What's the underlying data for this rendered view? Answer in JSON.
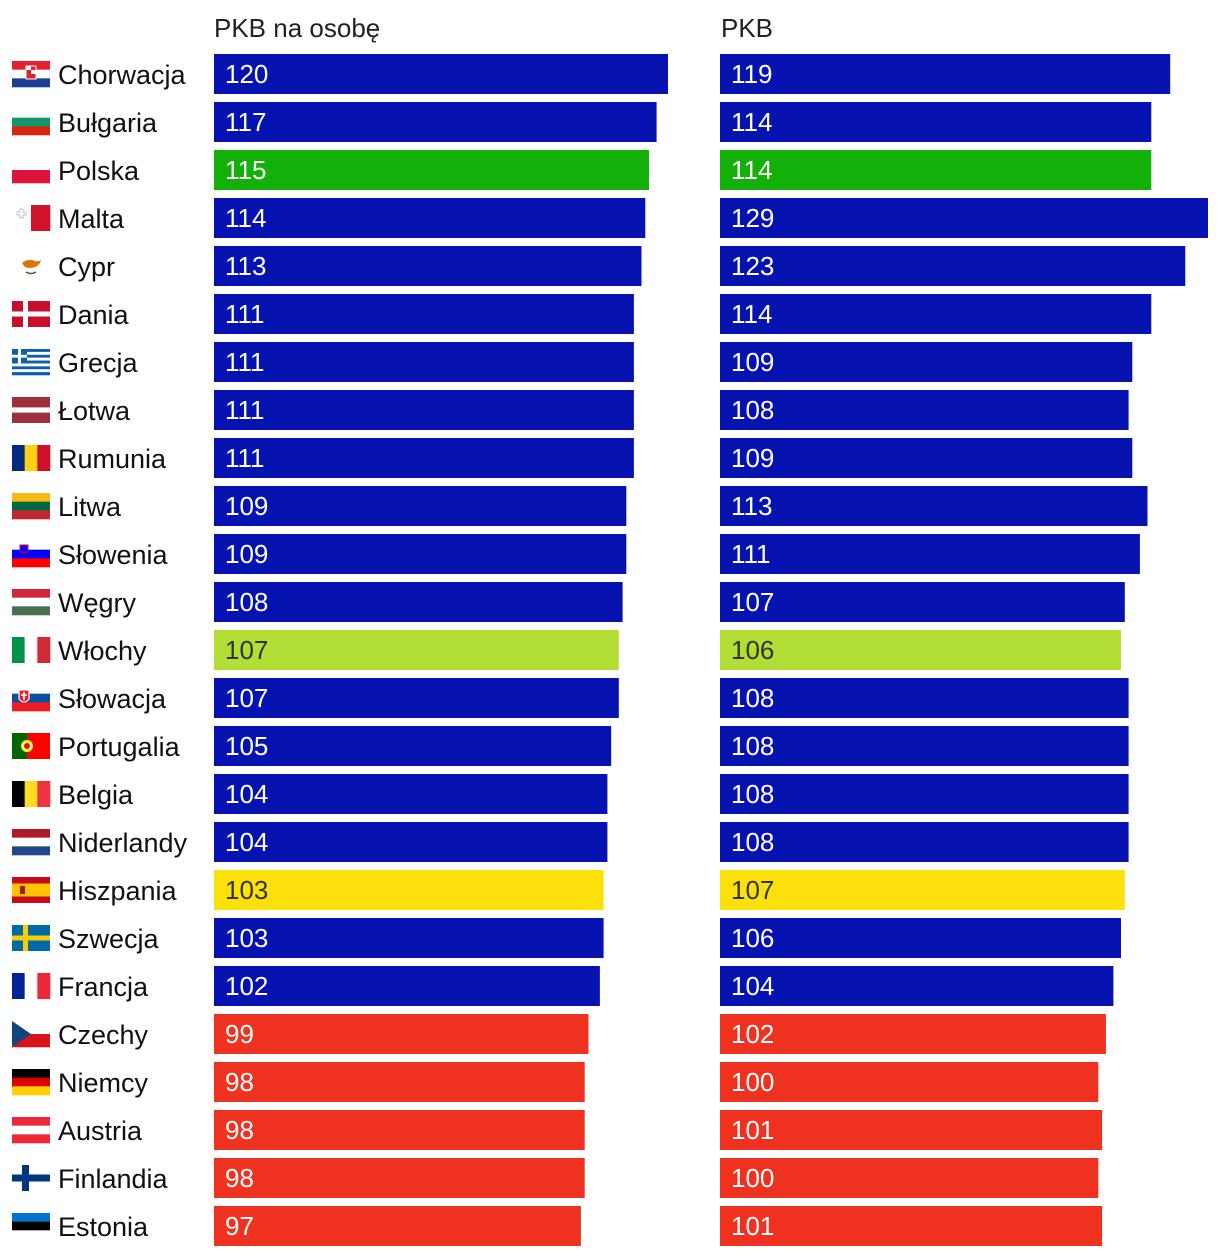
{
  "chart_data": {
    "type": "bar",
    "orientation": "horizontal",
    "colors": {
      "default": "#0613b0",
      "highlight_pl": "#14b00a",
      "highlight_it": "#b3de36",
      "highlight_es": "#fbe00c",
      "below_100": "#ef3220",
      "text_light": "#ffffff",
      "text_dark": "#333333"
    },
    "series": [
      {
        "name": "PKB na osobę",
        "xlim": [
          0,
          129
        ]
      },
      {
        "name": "PKB",
        "xlim": [
          0,
          129
        ]
      }
    ],
    "rows": [
      {
        "country": "Chorwacja",
        "flag": "croatia-flag",
        "color": "default",
        "values": [
          120,
          119
        ]
      },
      {
        "country": "Bułgaria",
        "flag": "bulgaria-flag",
        "color": "default",
        "values": [
          117,
          114
        ]
      },
      {
        "country": "Polska",
        "flag": "poland-flag",
        "color": "highlight_pl",
        "values": [
          115,
          114
        ]
      },
      {
        "country": "Malta",
        "flag": "malta-flag",
        "color": "default",
        "values": [
          114,
          129
        ]
      },
      {
        "country": "Cypr",
        "flag": "cyprus-flag",
        "color": "default",
        "values": [
          113,
          123
        ]
      },
      {
        "country": "Dania",
        "flag": "denmark-flag",
        "color": "default",
        "values": [
          111,
          114
        ]
      },
      {
        "country": "Grecja",
        "flag": "greece-flag",
        "color": "default",
        "values": [
          111,
          109
        ]
      },
      {
        "country": "Łotwa",
        "flag": "latvia-flag",
        "color": "default",
        "values": [
          111,
          108
        ]
      },
      {
        "country": "Rumunia",
        "flag": "romania-flag",
        "color": "default",
        "values": [
          111,
          109
        ]
      },
      {
        "country": "Litwa",
        "flag": "lithuania-flag",
        "color": "default",
        "values": [
          109,
          113
        ]
      },
      {
        "country": "Słowenia",
        "flag": "slovenia-flag",
        "color": "default",
        "values": [
          109,
          111
        ]
      },
      {
        "country": "Węgry",
        "flag": "hungary-flag",
        "color": "default",
        "values": [
          108,
          107
        ]
      },
      {
        "country": "Włochy",
        "flag": "italy-flag",
        "color": "highlight_it",
        "values": [
          107,
          106
        ]
      },
      {
        "country": "Słowacja",
        "flag": "slovakia-flag",
        "color": "default",
        "values": [
          107,
          108
        ]
      },
      {
        "country": "Portugalia",
        "flag": "portugal-flag",
        "color": "default",
        "values": [
          105,
          108
        ]
      },
      {
        "country": "Belgia",
        "flag": "belgium-flag",
        "color": "default",
        "values": [
          104,
          108
        ]
      },
      {
        "country": "Niderlandy",
        "flag": "netherlands-flag",
        "color": "default",
        "values": [
          104,
          108
        ]
      },
      {
        "country": "Hiszpania",
        "flag": "spain-flag",
        "color": "highlight_es",
        "values": [
          103,
          107
        ]
      },
      {
        "country": "Szwecja",
        "flag": "sweden-flag",
        "color": "default",
        "values": [
          103,
          106
        ]
      },
      {
        "country": "Francja",
        "flag": "france-flag",
        "color": "default",
        "values": [
          102,
          104
        ]
      },
      {
        "country": "Czechy",
        "flag": "czechia-flag",
        "color": "below_100",
        "values": [
          99,
          102
        ]
      },
      {
        "country": "Niemcy",
        "flag": "germany-flag",
        "color": "below_100",
        "values": [
          98,
          100
        ]
      },
      {
        "country": "Austria",
        "flag": "austria-flag",
        "color": "below_100",
        "values": [
          98,
          101
        ]
      },
      {
        "country": "Finlandia",
        "flag": "finland-flag",
        "color": "below_100",
        "values": [
          98,
          100
        ]
      },
      {
        "country": "Estonia",
        "flag": "estonia-flag",
        "color": "below_100",
        "values": [
          97,
          101
        ]
      }
    ]
  }
}
